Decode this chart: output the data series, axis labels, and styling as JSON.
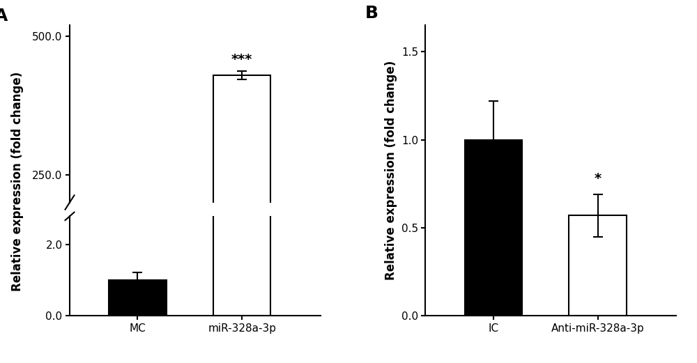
{
  "panel_A": {
    "categories": [
      "MC",
      "miR-328a-3p"
    ],
    "values": [
      1.0,
      430.0
    ],
    "errors": [
      0.22,
      8.0
    ],
    "colors": [
      "#000000",
      "#ffffff"
    ],
    "ylabel": "Relative expression (fold change)",
    "significance": [
      "",
      "***"
    ],
    "sig_fontsize": 14,
    "yticks_upper": [
      250.0,
      500.0
    ],
    "ytick_upper_labels": [
      "250.0",
      "500.0"
    ],
    "yticks_lower": [
      0.0,
      2.0
    ],
    "ytick_lower_labels": [
      "0.0",
      "2.0"
    ],
    "ylim_lower": [
      0.0,
      2.8
    ],
    "ylim_upper": [
      200.0,
      520.0
    ],
    "panel_label": "A"
  },
  "panel_B": {
    "categories": [
      "IC",
      "Anti-miR-328a-3p"
    ],
    "values": [
      1.0,
      0.57
    ],
    "errors": [
      0.22,
      0.12
    ],
    "colors": [
      "#000000",
      "#ffffff"
    ],
    "ylabel": "Relative expression (fold change)",
    "significance": [
      "",
      "*"
    ],
    "sig_fontsize": 14,
    "yticks": [
      0.0,
      0.5,
      1.0,
      1.5
    ],
    "ylim": [
      0.0,
      1.65
    ],
    "panel_label": "B"
  },
  "background_color": "#ffffff",
  "bar_width": 0.55,
  "bar_edgecolor": "#000000",
  "axis_linewidth": 1.5,
  "tick_fontsize": 11,
  "label_fontsize": 12,
  "panel_label_fontsize": 18
}
